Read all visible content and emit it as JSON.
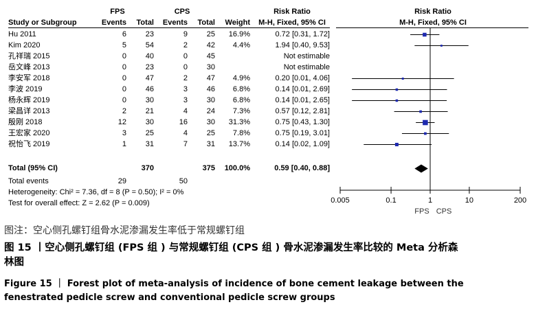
{
  "chart_data": {
    "type": "forest",
    "headers": {
      "study": "Study or Subgroup",
      "group1": "FPS",
      "group2": "CPS",
      "events": "Events",
      "total": "Total",
      "weight": "Weight",
      "effect_title": "Risk Ratio",
      "effect_method": "M-H, Fixed, 95% CI",
      "plot_title": "Risk Ratio",
      "plot_method": "M-H, Fixed, 95% CI"
    },
    "studies": [
      {
        "name": "Hu 2011",
        "e1": "6",
        "n1": "23",
        "e2": "9",
        "n2": "25",
        "weight": "16.9%",
        "ci": "0.72 [0.31, 1.72]",
        "rr": 0.72,
        "lo": 0.31,
        "hi": 1.72
      },
      {
        "name": "Kim 2020",
        "e1": "5",
        "n1": "54",
        "e2": "2",
        "n2": "42",
        "weight": "4.4%",
        "ci": "1.94 [0.40, 9.53]",
        "rr": 1.94,
        "lo": 0.4,
        "hi": 9.53
      },
      {
        "name": "孔祥瑞 2015",
        "e1": "0",
        "n1": "40",
        "e2": "0",
        "n2": "45",
        "weight": "",
        "ci": "Not estimable",
        "rr": null,
        "lo": null,
        "hi": null
      },
      {
        "name": "岳文峰 2013",
        "e1": "0",
        "n1": "23",
        "e2": "0",
        "n2": "30",
        "weight": "",
        "ci": "Not estimable",
        "rr": null,
        "lo": null,
        "hi": null
      },
      {
        "name": "李安军 2018",
        "e1": "0",
        "n1": "47",
        "e2": "2",
        "n2": "47",
        "weight": "4.9%",
        "ci": "0.20 [0.01, 4.06]",
        "rr": 0.2,
        "lo": 0.01,
        "hi": 4.06
      },
      {
        "name": "李波 2019",
        "e1": "0",
        "n1": "46",
        "e2": "3",
        "n2": "46",
        "weight": "6.8%",
        "ci": "0.14 [0.01, 2.69]",
        "rr": 0.14,
        "lo": 0.01,
        "hi": 2.69
      },
      {
        "name": "杨永辉 2019",
        "e1": "0",
        "n1": "30",
        "e2": "3",
        "n2": "30",
        "weight": "6.8%",
        "ci": "0.14 [0.01, 2.65]",
        "rr": 0.14,
        "lo": 0.01,
        "hi": 2.65
      },
      {
        "name": "梁昌详 2013",
        "e1": "2",
        "n1": "21",
        "e2": "4",
        "n2": "24",
        "weight": "7.3%",
        "ci": "0.57 [0.12, 2.81]",
        "rr": 0.57,
        "lo": 0.12,
        "hi": 2.81
      },
      {
        "name": "殷刚 2018",
        "e1": "12",
        "n1": "30",
        "e2": "16",
        "n2": "30",
        "weight": "31.3%",
        "ci": "0.75 [0.43, 1.30]",
        "rr": 0.75,
        "lo": 0.43,
        "hi": 1.3
      },
      {
        "name": "王宏家 2020",
        "e1": "3",
        "n1": "25",
        "e2": "4",
        "n2": "25",
        "weight": "7.8%",
        "ci": "0.75 [0.19, 3.01]",
        "rr": 0.75,
        "lo": 0.19,
        "hi": 3.01
      },
      {
        "name": "祝怡飞 2019",
        "e1": "1",
        "n1": "31",
        "e2": "7",
        "n2": "31",
        "weight": "13.7%",
        "ci": "0.14 [0.02, 1.09]",
        "rr": 0.14,
        "lo": 0.02,
        "hi": 1.09
      }
    ],
    "total": {
      "name": "Total (95% CI)",
      "n1": "370",
      "n2": "375",
      "weight": "100.0%",
      "ci": "0.59 [0.40, 0.88]",
      "rr": 0.59,
      "lo": 0.4,
      "hi": 0.88
    },
    "total_events": {
      "label": "Total events",
      "e1": "29",
      "e2": "50"
    },
    "heterogeneity": "Heterogeneity: Chi² = 7.36, df = 8 (P = 0.50); I² = 0%",
    "overall_effect": "Test for overall effect: Z = 2.62 (P = 0.009)",
    "x_axis": {
      "scale": "log",
      "xlim": [
        0.005,
        200
      ],
      "ticks": [
        0.005,
        0.1,
        1,
        10,
        200
      ],
      "tick_labels": [
        "0.005",
        "0.1",
        "1",
        "10",
        "200"
      ],
      "favours_left": "FPS",
      "favours_right": "CPS"
    },
    "colors": {
      "marker": "#1f2bb0",
      "diamond": "#000000",
      "line": "#000000"
    }
  },
  "caption": {
    "note": "图注：空心侧孔螺钉组骨水泥渗漏发生率低于常规螺钉组",
    "title_cn_line1": "图 15 丨空心侧孔螺钉组 (FPS 组 ) 与常规螺钉组 (CPS 组 ) 骨水泥渗漏发生率比较的 Meta 分析森",
    "title_cn_line2": "林图",
    "title_en_line1": "Figure 15  ｜  Forest plot of meta-analysis of incidence of bone cement leakage between the",
    "title_en_line2": "fenestrated pedicle screw and conventional pedicle screw groups"
  }
}
